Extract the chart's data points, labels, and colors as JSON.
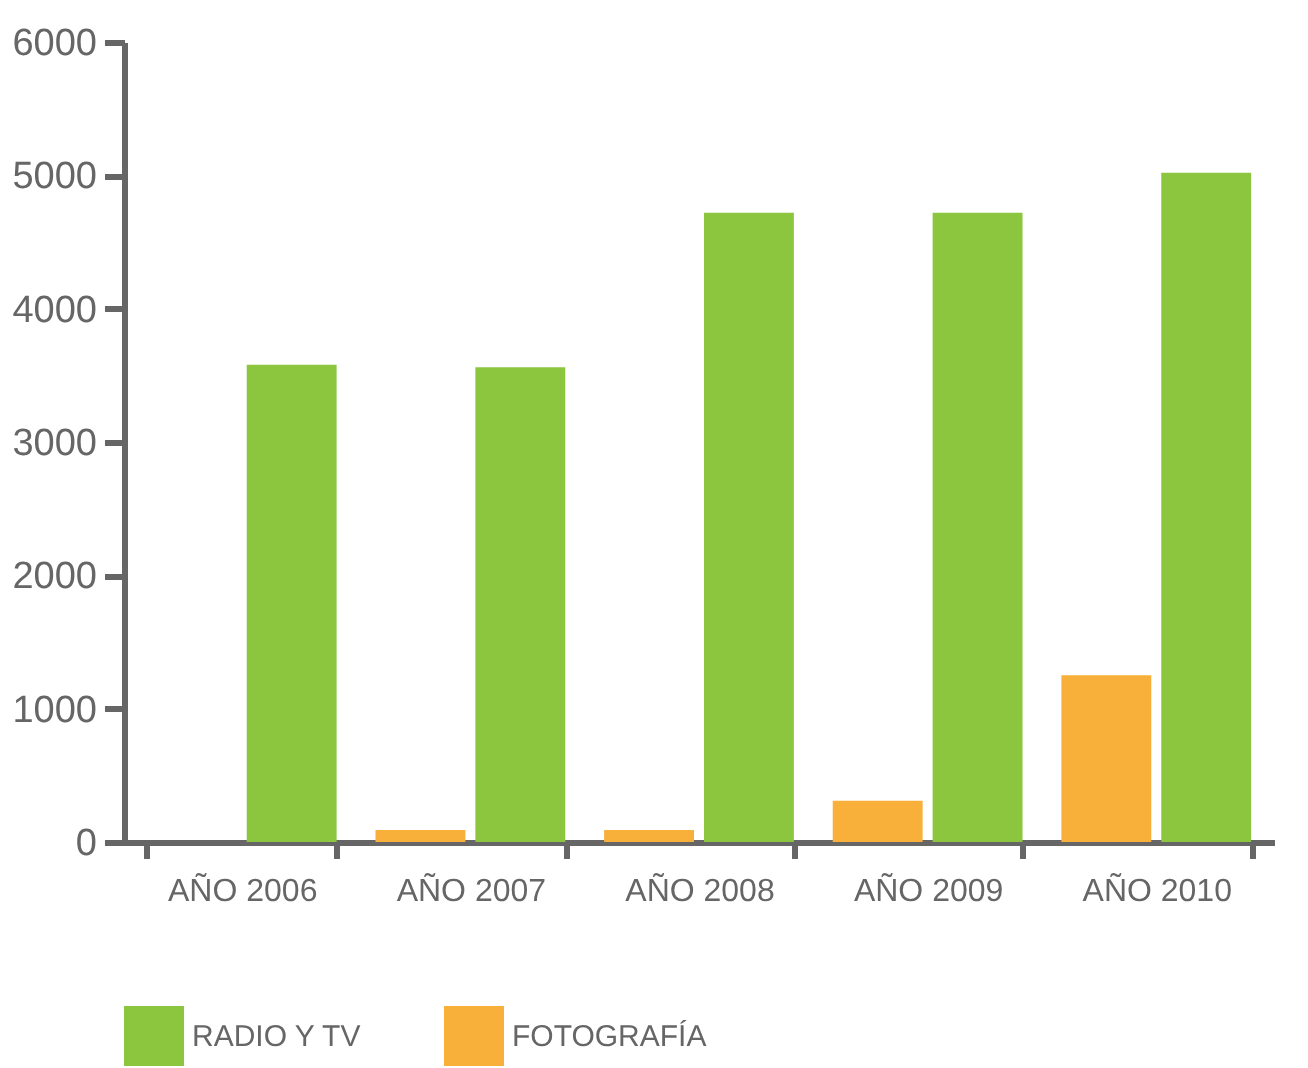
{
  "chart_data": {
    "type": "bar",
    "categories": [
      "AÑO 2006",
      "AÑO 2007",
      "AÑO 2008",
      "AÑO 2009",
      "AÑO 2010"
    ],
    "series": [
      {
        "name": "RADIO Y TV",
        "color": "#8cc63f",
        "values": [
          3580,
          3560,
          4720,
          4720,
          5020
        ]
      },
      {
        "name": "FOTOGRAFÍA",
        "color": "#f9b03a",
        "values": [
          0,
          90,
          90,
          310,
          1250
        ]
      }
    ],
    "ylim": [
      0,
      6000
    ],
    "yticks": [
      0,
      1000,
      2000,
      3000,
      4000,
      5000,
      6000
    ],
    "grid": false,
    "legend": "bottom"
  }
}
